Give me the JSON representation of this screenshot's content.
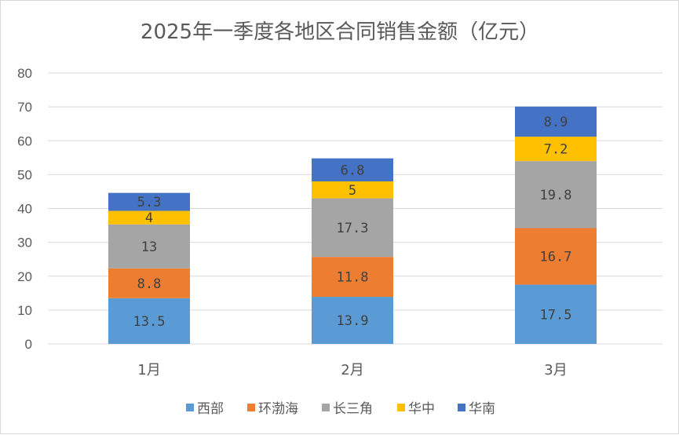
{
  "chart_data": {
    "type": "bar",
    "stacked": true,
    "title": "2025年一季度各地区合同销售金额（亿元）",
    "categories": [
      "1月",
      "2月",
      "3月"
    ],
    "ylim": [
      0,
      80
    ],
    "yticks": [
      0,
      10,
      20,
      30,
      40,
      50,
      60,
      70,
      80
    ],
    "grid": true,
    "legend_position": "bottom",
    "series": [
      {
        "name": "西部",
        "color": "#5b9bd5",
        "values": [
          13.5,
          13.9,
          17.5
        ]
      },
      {
        "name": "环渤海",
        "color": "#ed7d31",
        "values": [
          8.8,
          11.8,
          16.7
        ]
      },
      {
        "name": "长三角",
        "color": "#a5a5a5",
        "values": [
          13,
          17.3,
          19.8
        ]
      },
      {
        "name": "华中",
        "color": "#ffc000",
        "values": [
          4,
          5,
          7.2
        ]
      },
      {
        "name": "华南",
        "color": "#4472c4",
        "values": [
          5.3,
          6.8,
          8.9
        ]
      }
    ]
  }
}
